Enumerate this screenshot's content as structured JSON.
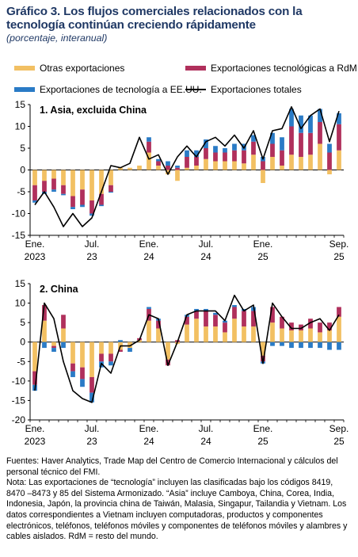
{
  "header": {
    "title": "Gráfico 3.  Los flujos comerciales relacionados con la tecnología continúan creciendo rápidamente",
    "subtitle": "(porcentaje, interanual)"
  },
  "legend": {
    "other": "Otras exportaciones",
    "tech_rdm": "Exportaciones tecnológicas a RdM",
    "tech_us": "Exportaciones de tecnología a EE.UU.",
    "total": "Exportaciones totales"
  },
  "colors": {
    "other": "#f2c063",
    "tech_rdm": "#b0305c",
    "tech_us": "#2a7bc6",
    "total": "#000000"
  },
  "chart_data": [
    {
      "type": "bar",
      "title": "1. Asia, excluida China",
      "stacked": true,
      "ylim": [
        -15,
        15
      ],
      "yticks": [
        -15,
        -10,
        -5,
        0,
        5,
        10,
        15
      ],
      "xtick_labels": [
        {
          "index": 0,
          "line1": "Ene.",
          "line2": "2023"
        },
        {
          "index": 6,
          "line1": "Jul.",
          "line2": "23"
        },
        {
          "index": 12,
          "line1": "Ene.",
          "line2": "24"
        },
        {
          "index": 18,
          "line1": "Jul.",
          "line2": "24"
        },
        {
          "index": 24,
          "line1": "Ene.",
          "line2": "25"
        },
        {
          "index": 32,
          "line1": "Sep.",
          "line2": "25"
        }
      ],
      "series": [
        {
          "name": "Otras exportaciones",
          "values": [
            -3.5,
            -2.5,
            -2.0,
            -3.5,
            -6.0,
            -4.5,
            -7.0,
            -5.5,
            -3.5,
            0.5,
            0.5,
            1.0,
            4.0,
            1.0,
            -1.0,
            -2.5,
            0.5,
            1.0,
            2.5,
            2.0,
            2.0,
            2.0,
            1.5,
            3.5,
            -3.0,
            3.0,
            1.0,
            3.5,
            3.0,
            3.5,
            6.0,
            -1.0,
            4.5
          ]
        },
        {
          "name": "Exportaciones tecnológicas a RdM",
          "values": [
            -3.5,
            -2.5,
            -2.5,
            -2.0,
            -2.5,
            -3.5,
            -3.0,
            -2.5,
            -1.5,
            0.0,
            0.0,
            0.0,
            2.5,
            1.0,
            1.0,
            0.5,
            2.5,
            2.0,
            2.5,
            2.0,
            2.0,
            2.5,
            3.0,
            3.0,
            2.0,
            3.0,
            3.5,
            6.5,
            5.5,
            5.0,
            5.0,
            4.0,
            6.0
          ]
        },
        {
          "name": "Exportaciones de tecnología a EE.UU.",
          "values": [
            -0.5,
            -0.5,
            -0.5,
            -0.3,
            -0.5,
            -0.5,
            -0.5,
            -0.3,
            -0.2,
            0.0,
            0.0,
            0.0,
            1.0,
            0.5,
            1.0,
            0.5,
            1.5,
            1.5,
            2.0,
            1.5,
            1.0,
            1.5,
            1.5,
            1.5,
            1.0,
            2.5,
            3.0,
            4.0,
            4.0,
            4.0,
            3.0,
            2.0,
            2.5
          ]
        },
        {
          "name": "Exportaciones totales",
          "type": "line",
          "values": [
            -8.0,
            -5.0,
            -8.5,
            -13.0,
            -10.0,
            -13.0,
            -11.0,
            -5.0,
            1.0,
            0.5,
            1.5,
            7.5,
            2.5,
            3.5,
            -1.0,
            3.0,
            5.5,
            3.0,
            6.5,
            7.5,
            5.5,
            8.0,
            5.0,
            9.0,
            2.5,
            9.0,
            9.5,
            14.5,
            9.5,
            12.5,
            14.0,
            6.5,
            13.5
          ]
        }
      ]
    },
    {
      "type": "bar",
      "title": "2. China",
      "stacked": true,
      "ylim": [
        -20,
        15
      ],
      "yticks": [
        -20,
        -15,
        -10,
        -5,
        0,
        5,
        10,
        15
      ],
      "xtick_labels": [
        {
          "index": 0,
          "line1": "Ene.",
          "line2": "2023"
        },
        {
          "index": 6,
          "line1": "Jul.",
          "line2": "23"
        },
        {
          "index": 12,
          "line1": "Ene.",
          "line2": "24"
        },
        {
          "index": 18,
          "line1": "Jul.",
          "line2": "24"
        },
        {
          "index": 24,
          "line1": "Ene.",
          "line2": "25"
        },
        {
          "index": 32,
          "line1": "Sep.",
          "line2": "25"
        }
      ],
      "series": [
        {
          "name": "Otras exportaciones",
          "values": [
            -7.5,
            5.5,
            -1.0,
            3.5,
            -5.5,
            -6.5,
            -9.0,
            -3.0,
            -3.0,
            -2.0,
            -1.5,
            0.5,
            5.5,
            3.5,
            -4.5,
            -0.5,
            4.5,
            6.0,
            4.0,
            4.0,
            2.5,
            6.0,
            4.0,
            4.0,
            -3.5,
            5.0,
            3.5,
            3.0,
            3.0,
            3.5,
            2.5,
            3.0,
            6.5
          ]
        },
        {
          "name": "Exportaciones tecnológicas a RdM",
          "values": [
            -3.5,
            4.0,
            -0.5,
            3.5,
            -2.0,
            -3.0,
            -4.0,
            -2.0,
            -2.0,
            -0.5,
            0.0,
            0.5,
            3.0,
            2.0,
            -1.5,
            0.5,
            2.0,
            2.0,
            4.0,
            3.0,
            2.5,
            3.0,
            4.0,
            4.0,
            -1.5,
            4.0,
            3.0,
            2.0,
            1.5,
            2.5,
            2.5,
            2.0,
            2.5
          ]
        },
        {
          "name": "Exportaciones de tecnología a EE.UU.",
          "values": [
            -1.5,
            -1.5,
            -1.0,
            -1.5,
            -1.5,
            -2.0,
            -2.5,
            -1.5,
            -1.0,
            0.5,
            -1.0,
            0.0,
            0.5,
            0.5,
            0.0,
            0.0,
            0.5,
            0.5,
            0.5,
            0.5,
            0.5,
            0.5,
            0.5,
            1.0,
            -0.5,
            -1.0,
            -1.0,
            -1.5,
            -1.5,
            -1.5,
            -1.5,
            -2.0,
            -2.0
          ]
        },
        {
          "name": "Exportaciones totales",
          "type": "line",
          "values": [
            -12.5,
            10.0,
            6.0,
            -5.0,
            -12.5,
            -14.5,
            -15.5,
            -5.5,
            -8.0,
            -1.0,
            -1.0,
            0.5,
            7.0,
            6.0,
            -6.0,
            0.0,
            7.0,
            8.0,
            8.0,
            8.0,
            5.5,
            12.0,
            8.0,
            9.5,
            -5.5,
            10.0,
            6.5,
            3.5,
            3.5,
            5.0,
            6.0,
            3.0,
            7.0
          ]
        }
      ]
    }
  ],
  "footer": {
    "sources": "Fuentes: Haver Analytics, Trade Map del Centro de Comercio Internacional y cálculos del personal técnico del FMI.",
    "note": "Nota: Las exportaciones de “tecnología” incluyen las clasificadas bajo los códigos 8419, 8470 –8473 y 85 del Sistema Armonizado. “Asia” incluye Camboya, China, Corea, India, Indonesia, Japón, la provincia china de Taiwán, Malasia, Singapur, Tailandia y Vietnam. Los datos correspondientes a Vietnam incluyen computadoras, productos y componentes electrónicos, teléfonos, teléfonos móviles y componentes de teléfonos móviles y alambres y cables aislados. RdM = resto del mundo."
  }
}
